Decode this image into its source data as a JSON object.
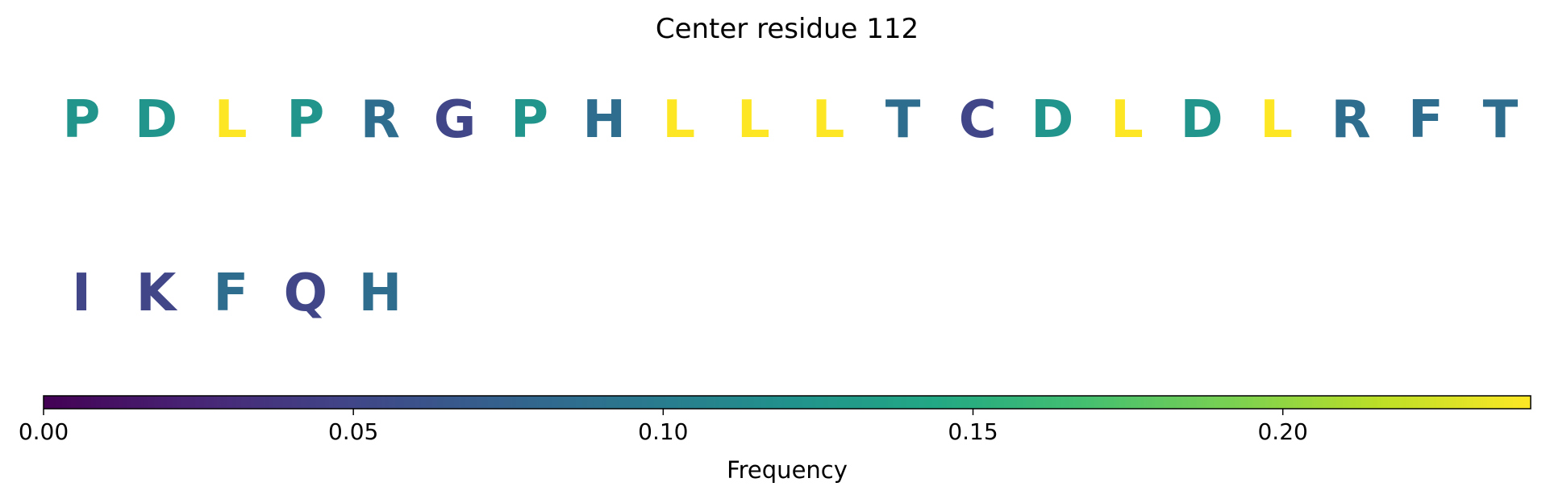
{
  "chart_data": {
    "type": "table",
    "title": "Center residue 112",
    "cell_label": "residue",
    "rows": [
      [
        {
          "residue": "P",
          "frequency": 0.123
        },
        {
          "residue": "D",
          "frequency": 0.123
        },
        {
          "residue": "L",
          "frequency": 0.24
        },
        {
          "residue": "P",
          "frequency": 0.123
        },
        {
          "residue": "R",
          "frequency": 0.085
        },
        {
          "residue": "G",
          "frequency": 0.05
        },
        {
          "residue": "P",
          "frequency": 0.123
        },
        {
          "residue": "H",
          "frequency": 0.085
        },
        {
          "residue": "L",
          "frequency": 0.24
        },
        {
          "residue": "L",
          "frequency": 0.24
        },
        {
          "residue": "L",
          "frequency": 0.24
        },
        {
          "residue": "T",
          "frequency": 0.085
        },
        {
          "residue": "C",
          "frequency": 0.05
        },
        {
          "residue": "D",
          "frequency": 0.123
        },
        {
          "residue": "L",
          "frequency": 0.24
        },
        {
          "residue": "D",
          "frequency": 0.123
        },
        {
          "residue": "L",
          "frequency": 0.24
        },
        {
          "residue": "R",
          "frequency": 0.085
        },
        {
          "residue": "F",
          "frequency": 0.085
        },
        {
          "residue": "T",
          "frequency": 0.085
        }
      ],
      [
        {
          "residue": "I",
          "frequency": 0.05
        },
        {
          "residue": "K",
          "frequency": 0.05
        },
        {
          "residue": "F",
          "frequency": 0.085
        },
        {
          "residue": "Q",
          "frequency": 0.05
        },
        {
          "residue": "H",
          "frequency": 0.085
        }
      ]
    ],
    "colorbar": {
      "label": "Frequency",
      "colormap": "viridis",
      "range": [
        0.0,
        0.24
      ],
      "ticks": [
        0.0,
        0.05,
        0.1,
        0.15,
        0.2
      ],
      "tick_labels": [
        "0.00",
        "0.05",
        "0.10",
        "0.15",
        "0.20"
      ]
    }
  }
}
